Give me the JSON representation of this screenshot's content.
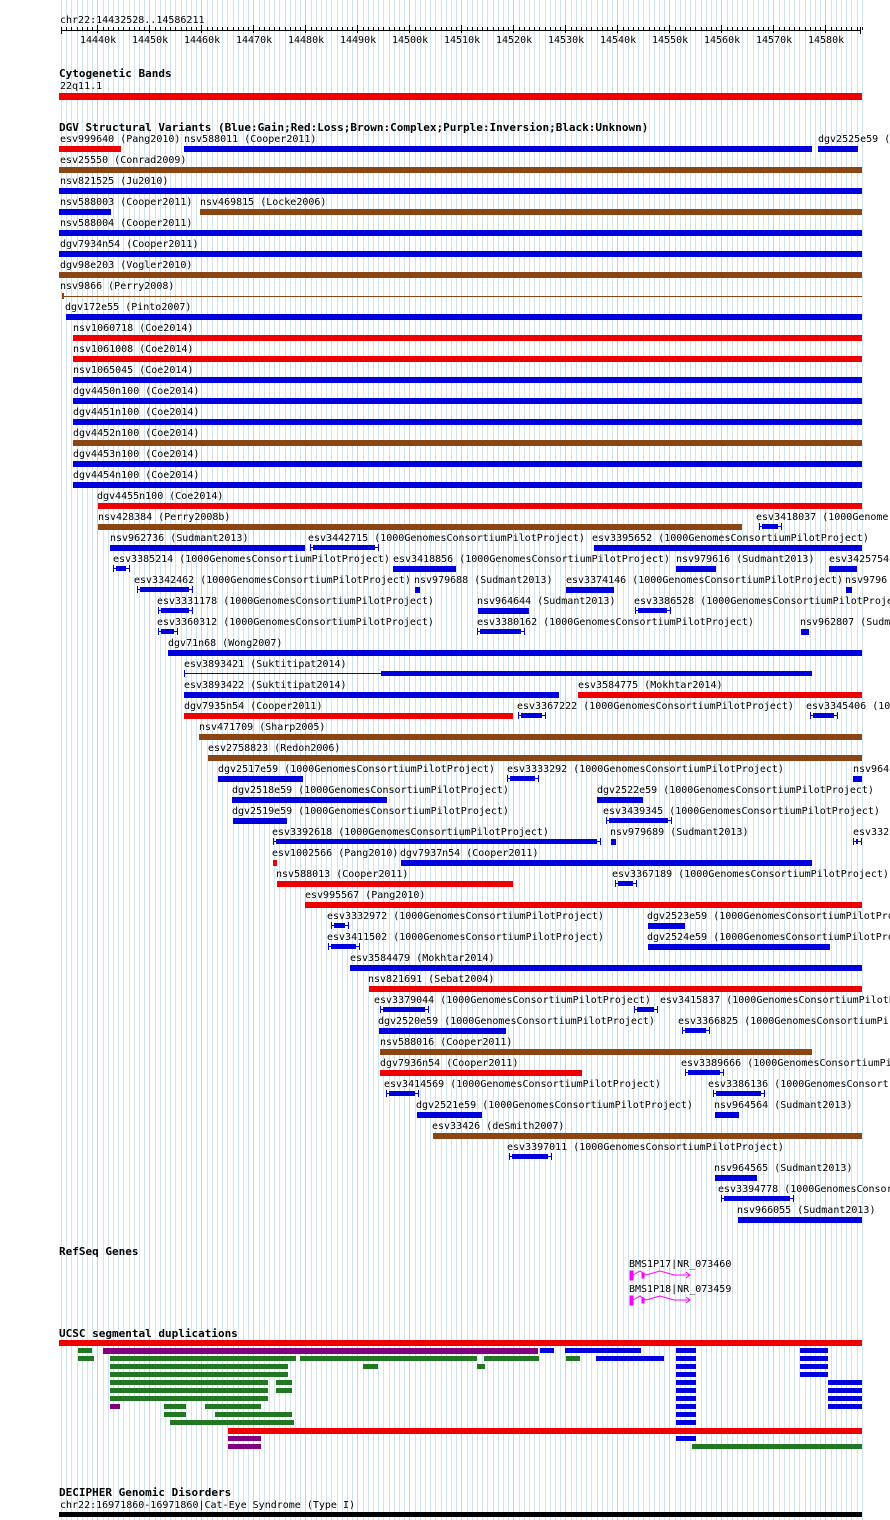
{
  "ruler": {
    "location": "chr22:14432528..14586211",
    "ticks": [
      "14440k",
      "14450k",
      "14460k",
      "14470k",
      "14480k",
      "14490k",
      "14500k",
      "14510k",
      "14520k",
      "14530k",
      "14540k",
      "14550k",
      "14560k",
      "14570k",
      "14580k"
    ]
  },
  "colors": {
    "gain": "#0000dd",
    "loss": "#ee0000",
    "complex": "#8b4513",
    "inversion": "#800080",
    "segdup_green": "#227722",
    "decipher": "#000000",
    "refseq": "#ff00ff"
  },
  "cytobands": {
    "title": "Cytogenetic Bands",
    "band": "22q11.1"
  },
  "dgv": {
    "title": "DGV Structural Variants (Blue:Gain;Red:Loss;Brown:Complex;Purple:Inversion;Black:Unknown)",
    "rows": [
      [
        {
          "label": "esv999640 (Pang2010)",
          "type": "loss"
        },
        {
          "label": "nsv588011 (Cooper2011)",
          "type": "gain"
        },
        {
          "label": "dgv2525e59 (",
          "type": "gain"
        }
      ],
      [
        {
          "label": "esv25550 (Conrad2009)",
          "type": "complex"
        }
      ],
      [
        {
          "label": "nsv821525 (Ju2010)",
          "type": "gain"
        }
      ],
      [
        {
          "label": "nsv588003 (Cooper2011)",
          "type": "gain"
        },
        {
          "label": "nsv469815 (Locke2006)",
          "type": "complex"
        }
      ],
      [
        {
          "label": "nsv588004 (Cooper2011)",
          "type": "gain"
        }
      ],
      [
        {
          "label": "dgv7934n54 (Cooper2011)",
          "type": "gain"
        }
      ],
      [
        {
          "label": "dgv98e203 (Vogler2010)",
          "type": "complex"
        }
      ],
      [
        {
          "label": "nsv9866 (Perry2008)",
          "type": "complex"
        }
      ],
      [
        {
          "label": "dgv172e55 (Pinto2007)",
          "type": "gain"
        }
      ],
      [
        {
          "label": "nsv1060718 (Coe2014)",
          "type": "loss"
        }
      ],
      [
        {
          "label": "nsv1061008 (Coe2014)",
          "type": "loss"
        }
      ],
      [
        {
          "label": "nsv1065045 (Coe2014)",
          "type": "gain"
        }
      ],
      [
        {
          "label": "dgv4450n100 (Coe2014)",
          "type": "gain"
        }
      ],
      [
        {
          "label": "dgv4451n100 (Coe2014)",
          "type": "gain"
        }
      ],
      [
        {
          "label": "dgv4452n100 (Coe2014)",
          "type": "complex"
        }
      ],
      [
        {
          "label": "dgv4453n100 (Coe2014)",
          "type": "gain"
        }
      ],
      [
        {
          "label": "dgv4454n100 (Coe2014)",
          "type": "gain"
        }
      ],
      [
        {
          "label": "dgv4455n100 (Coe2014)",
          "type": "loss"
        }
      ],
      [
        {
          "label": "nsv428384 (Perry2008b)",
          "type": "complex"
        },
        {
          "label": "esv3418037 (1000Genome",
          "type": "gain"
        }
      ],
      [
        {
          "label": "nsv962736 (Sudmant2013)",
          "type": "gain"
        },
        {
          "label": "esv3442715 (1000GenomesConsortiumPilotProject)",
          "type": "gain"
        },
        {
          "label": "esv3395652 (1000GenomesConsortiumPilotProject)",
          "type": "gain"
        }
      ],
      [
        {
          "label": "esv3385214 (1000GenomesConsortiumPilotProject)",
          "type": "gain"
        },
        {
          "label": "esv3418856 (1000GenomesConsortiumPilotProject)",
          "type": "gain"
        },
        {
          "label": "nsv979616 (Sudmant2013)",
          "type": "gain"
        },
        {
          "label": "esv3425754",
          "type": "gain"
        }
      ],
      [
        {
          "label": "esv3342462 (1000GenomesConsortiumPilotProject)",
          "type": "gain"
        },
        {
          "label": "nsv979688 (Sudmant2013)",
          "type": "gain"
        },
        {
          "label": "esv3374146 (1000GenomesConsortiumPilotProject)",
          "type": "gain"
        },
        {
          "label": "nsv9796",
          "type": "gain"
        }
      ],
      [
        {
          "label": "esv3331178 (1000GenomesConsortiumPilotProject)",
          "type": "gain"
        },
        {
          "label": "nsv964644 (Sudmant2013)",
          "type": "gain"
        },
        {
          "label": "esv3386528 (1000GenomesConsortiumPilotProje",
          "type": "gain"
        }
      ],
      [
        {
          "label": "esv3360312 (1000GenomesConsortiumPilotProject)",
          "type": "gain"
        },
        {
          "label": "esv3380162 (1000GenomesConsortiumPilotProject)",
          "type": "gain"
        },
        {
          "label": "nsv962807 (Sudm",
          "type": "gain"
        }
      ],
      [
        {
          "label": "dgv71n68 (Wong2007)",
          "type": "gain"
        }
      ],
      [
        {
          "label": "esv3893421 (Suktitipat2014)",
          "type": "gain"
        }
      ],
      [
        {
          "label": "esv3893422 (Suktitipat2014)",
          "type": "gain"
        },
        {
          "label": "esv3584775 (Mokhtar2014)",
          "type": "loss"
        }
      ],
      [
        {
          "label": "dgv7935n54 (Cooper2011)",
          "type": "loss"
        },
        {
          "label": "esv3367222 (1000GenomesConsortiumPilotProject)",
          "type": "gain"
        },
        {
          "label": "esv3345406 (10",
          "type": "gain"
        }
      ],
      [
        {
          "label": "nsv471709 (Sharp2005)",
          "type": "complex"
        }
      ],
      [
        {
          "label": "esv2758823 (Redon2006)",
          "type": "complex"
        }
      ],
      [
        {
          "label": "dgv2517e59 (1000GenomesConsortiumPilotProject)",
          "type": "gain"
        },
        {
          "label": "esv3333292 (1000GenomesConsortiumPilotProject)",
          "type": "gain"
        },
        {
          "label": "nsv964",
          "type": "gain"
        }
      ],
      [
        {
          "label": "dgv2518e59 (1000GenomesConsortiumPilotProject)",
          "type": "gain"
        },
        {
          "label": "dgv2522e59 (1000GenomesConsortiumPilotProject)",
          "type": "gain"
        }
      ],
      [
        {
          "label": "dgv2519e59 (1000GenomesConsortiumPilotProject)",
          "type": "gain"
        },
        {
          "label": "esv3439345 (1000GenomesConsortiumPilotProject)",
          "type": "gain"
        }
      ],
      [
        {
          "label": "esv3392618 (1000GenomesConsortiumPilotProject)",
          "type": "gain"
        },
        {
          "label": "nsv979689 (Sudmant2013)",
          "type": "gain"
        },
        {
          "label": "esv332",
          "type": "gain"
        }
      ],
      [
        {
          "label": "esv1002566 (Pang2010)",
          "type": "loss"
        },
        {
          "label": "dgv7937n54 (Cooper2011)",
          "type": "gain"
        }
      ],
      [
        {
          "label": "nsv588013 (Cooper2011)",
          "type": "loss"
        },
        {
          "label": "esv3367189 (1000GenomesConsortiumPilotProject)",
          "type": "gain"
        }
      ],
      [
        {
          "label": "esv995567 (Pang2010)",
          "type": "loss"
        }
      ],
      [
        {
          "label": "esv3332972 (1000GenomesConsortiumPilotProject)",
          "type": "gain"
        },
        {
          "label": "dgv2523e59 (1000GenomesConsortiumPilotPro",
          "type": "gain"
        }
      ],
      [
        {
          "label": "esv3411502 (1000GenomesConsortiumPilotProject)",
          "type": "gain"
        },
        {
          "label": "dgv2524e59 (1000GenomesConsortiumPilotPro",
          "type": "gain"
        }
      ],
      [
        {
          "label": "esv3584479 (Mokhtar2014)",
          "type": "gain"
        }
      ],
      [
        {
          "label": "nsv821691 (Sebat2004)",
          "type": "loss"
        }
      ],
      [
        {
          "label": "esv3379044 (1000GenomesConsortiumPilotProject)",
          "type": "gain"
        },
        {
          "label": "esv3415837 (1000GenomesConsortiumPilotPr",
          "type": "gain"
        }
      ],
      [
        {
          "label": "dgv2520e59 (1000GenomesConsortiumPilotProject)",
          "type": "gain"
        },
        {
          "label": "esv3366825 (1000GenomesConsortiumPi",
          "type": "gain"
        }
      ],
      [
        {
          "label": "nsv588016 (Cooper2011)",
          "type": "complex"
        }
      ],
      [
        {
          "label": "dgv7936n54 (Cooper2011)",
          "type": "loss"
        },
        {
          "label": "esv3389666 (1000GenomesConsortiumPi",
          "type": "gain"
        }
      ],
      [
        {
          "label": "esv3414569 (1000GenomesConsortiumPilotProject)",
          "type": "gain"
        },
        {
          "label": "esv3386136 (1000GenomesConsort",
          "type": "gain"
        }
      ],
      [
        {
          "label": "dgv2521e59 (1000GenomesConsortiumPilotProject)",
          "type": "gain"
        },
        {
          "label": "nsv964564 (Sudmant2013)",
          "type": "gain"
        }
      ],
      [
        {
          "label": "esv33426 (deSmith2007)",
          "type": "complex"
        }
      ],
      [
        {
          "label": "esv3397011 (1000GenomesConsortiumPilotProject)",
          "type": "gain"
        }
      ],
      [
        {
          "label": "nsv964565 (Sudmant2013)",
          "type": "gain"
        }
      ],
      [
        {
          "label": "esv3394778 (1000GenomesConsor",
          "type": "gain"
        }
      ],
      [
        {
          "label": "nsv966055 (Sudmant2013)",
          "type": "gain"
        }
      ]
    ]
  },
  "refseq": {
    "title": "RefSeq Genes",
    "genes": [
      "BMS1P17|NR_073460",
      "BMS1P18|NR_073459"
    ]
  },
  "segdups": {
    "title": "UCSC segmental duplications"
  },
  "decipher": {
    "title": "DECIPHER Genomic Disorders",
    "item": "chr22:16971860-16971860|Cat-Eye Syndrome (Type I)"
  }
}
